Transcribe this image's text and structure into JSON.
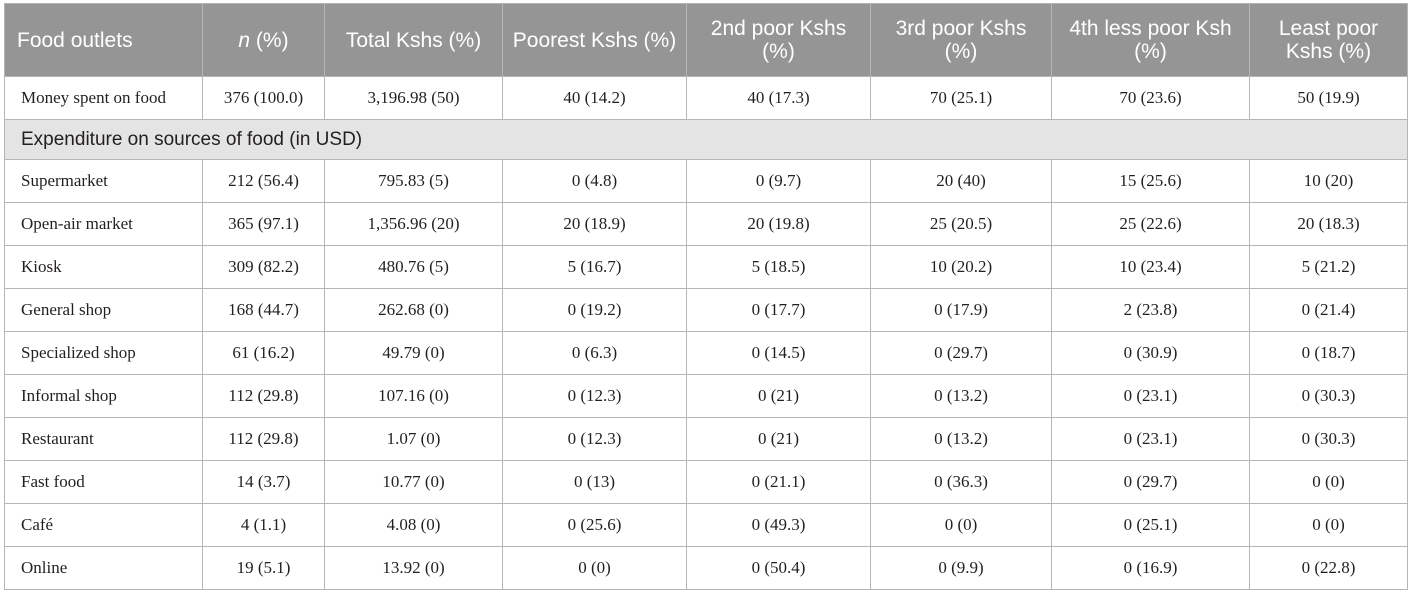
{
  "table": {
    "headers": [
      {
        "pre": "Food outlets",
        "ital": "",
        "post": ""
      },
      {
        "pre": "",
        "ital": "n",
        "post": " (%)"
      },
      {
        "pre": "Total Kshs (%)",
        "ital": "",
        "post": ""
      },
      {
        "pre": "Poorest Kshs (%)",
        "ital": "",
        "post": ""
      },
      {
        "pre": "2nd poor Kshs (%)",
        "ital": "",
        "post": ""
      },
      {
        "pre": "3rd poor Kshs (%)",
        "ital": "",
        "post": ""
      },
      {
        "pre": "4th less poor Ksh (%)",
        "ital": "",
        "post": ""
      },
      {
        "pre": "Least poor Kshs (%)",
        "ital": "",
        "post": ""
      }
    ],
    "top_row": [
      "Money spent on food",
      "376 (100.0)",
      "3,196.98 (50)",
      "40 (14.2)",
      "40 (17.3)",
      "70 (25.1)",
      "70 (23.6)",
      "50 (19.9)"
    ],
    "section_label": "Expenditure on sources of food (in USD)",
    "rows": [
      [
        "Supermarket",
        "212 (56.4)",
        "795.83 (5)",
        "0 (4.8)",
        "0 (9.7)",
        "20 (40)",
        "15 (25.6)",
        "10 (20)"
      ],
      [
        "Open-air market",
        "365 (97.1)",
        "1,356.96 (20)",
        "20 (18.9)",
        "20 (19.8)",
        "25 (20.5)",
        "25 (22.6)",
        "20 (18.3)"
      ],
      [
        "Kiosk",
        "309 (82.2)",
        "480.76 (5)",
        "5 (16.7)",
        "5 (18.5)",
        "10 (20.2)",
        "10 (23.4)",
        "5 (21.2)"
      ],
      [
        "General shop",
        "168 (44.7)",
        "262.68 (0)",
        "0 (19.2)",
        "0 (17.7)",
        "0 (17.9)",
        "2 (23.8)",
        "0 (21.4)"
      ],
      [
        "Specialized shop",
        "61 (16.2)",
        "49.79 (0)",
        "0 (6.3)",
        "0 (14.5)",
        "0 (29.7)",
        "0 (30.9)",
        "0 (18.7)"
      ],
      [
        "Informal shop",
        "112 (29.8)",
        "107.16 (0)",
        "0 (12.3)",
        "0 (21)",
        "0 (13.2)",
        "0 (23.1)",
        "0 (30.3)"
      ],
      [
        "Restaurant",
        "112 (29.8)",
        "1.07 (0)",
        "0 (12.3)",
        "0 (21)",
        "0 (13.2)",
        "0 (23.1)",
        "0 (30.3)"
      ],
      [
        "Fast food",
        "14 (3.7)",
        "10.77 (0)",
        "0 (13)",
        "0 (21.1)",
        "0 (36.3)",
        "0 (29.7)",
        "0 (0)"
      ],
      [
        "Café",
        "4 (1.1)",
        "4.08 (0)",
        "0 (25.6)",
        "0 (49.3)",
        "0 (0)",
        "0 (25.1)",
        "0 (0)"
      ],
      [
        "Online",
        "19 (5.1)",
        "13.92 (0)",
        "0 (0)",
        "0 (50.4)",
        "0 (9.9)",
        "0 (16.9)",
        "0 (22.8)"
      ]
    ]
  }
}
